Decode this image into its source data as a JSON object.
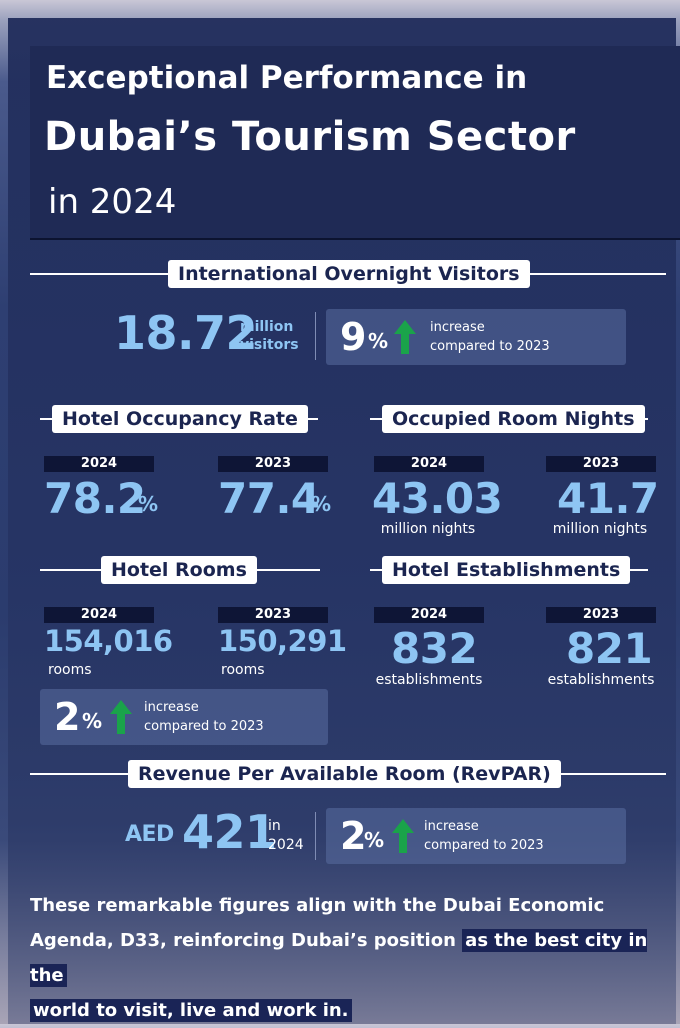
{
  "header": {
    "line1": "Exceptional Performance in",
    "line2": "Dubai’s Tourism Sector",
    "line3": "in 2024"
  },
  "visitors": {
    "heading": "International Overnight Visitors",
    "value": "18.72",
    "unit_line1": "million",
    "unit_line2": "visitors",
    "increase_num": "9",
    "increase_pct": "%",
    "increase_line1": "increase",
    "increase_line2": "compared to 2023"
  },
  "occupancy": {
    "heading": "Hotel Occupancy Rate",
    "y1_label": "2024",
    "y1_value": "78.2",
    "y1_unit": "%",
    "y2_label": "2023",
    "y2_value": "77.4",
    "y2_unit": "%"
  },
  "room_nights": {
    "heading": "Occupied Room Nights",
    "y1_label": "2024",
    "y1_value": "43.03",
    "y1_unit": "million nights",
    "y2_label": "2023",
    "y2_value": "41.7",
    "y2_unit": "million nights"
  },
  "rooms": {
    "heading": "Hotel Rooms",
    "y1_label": "2024",
    "y1_value": "154,016",
    "y1_unit": "rooms",
    "y2_label": "2023",
    "y2_value": "150,291",
    "y2_unit": "rooms",
    "increase_num": "2",
    "increase_pct": "%",
    "increase_line1": "increase",
    "increase_line2": "compared to 2023"
  },
  "establishments": {
    "heading": "Hotel Establishments",
    "y1_label": "2024",
    "y1_value": "832",
    "y1_unit": "establishments",
    "y2_label": "2023",
    "y2_value": "821",
    "y2_unit": "establishments"
  },
  "revpar": {
    "heading": "Revenue Per Available Room (RevPAR)",
    "currency": "AED",
    "value": "421",
    "unit_line1": "in",
    "unit_line2": "2024",
    "increase_num": "2",
    "increase_pct": "%",
    "increase_line1": "increase",
    "increase_line2": "compared to 2023"
  },
  "footer": {
    "part1": "These remarkable figures align with the Dubai Economic Agenda, D33, reinforcing Dubai’s position",
    "highlight1": "as the best city in the",
    "highlight2": "world to visit, live and work in."
  },
  "colors": {
    "accent": "#8ec5f3",
    "arrow": "#1aa34a",
    "panel": "#24325f"
  },
  "icons": [
    "up-arrow-icon"
  ]
}
